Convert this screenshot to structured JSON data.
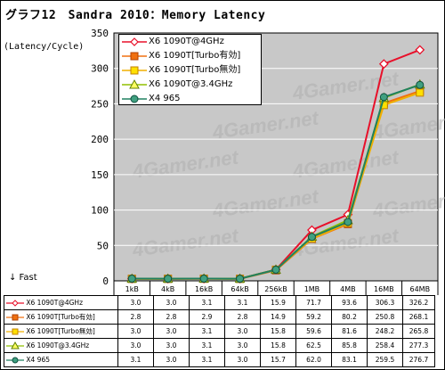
{
  "title": "グラフ12　Sandra 2010：Memory Latency",
  "ylabel": "(Latency/Cycle)",
  "fast_label": "↓ Fast",
  "chart_data": {
    "type": "line",
    "title": "グラフ12　Sandra 2010：Memory Latency",
    "ylabel": "(Latency/Cycle)",
    "xlabel": "",
    "categories": [
      "1kB",
      "4kB",
      "16kB",
      "64kB",
      "256kB",
      "1MB",
      "4MB",
      "16MB",
      "64MB"
    ],
    "ylim": [
      0,
      350
    ],
    "yticks": [
      0,
      50,
      100,
      150,
      200,
      250,
      300,
      350
    ],
    "grid": true,
    "legend_position": "top-left",
    "series": [
      {
        "name": "X6 1090T@4GHz",
        "values": [
          3.0,
          3.0,
          3.1,
          3.1,
          15.9,
          71.7,
          93.6,
          306.3,
          326.2
        ],
        "color": "#e8102a",
        "marker": "diamond",
        "marker_fill": "#ffffff",
        "marker_stroke": "#e8102a"
      },
      {
        "name": "X6 1090T[Turbo有効]",
        "values": [
          2.8,
          2.8,
          2.9,
          2.8,
          14.9,
          59.2,
          80.2,
          250.8,
          268.1
        ],
        "color": "#f07010",
        "marker": "square",
        "marker_fill": "#f07010",
        "marker_stroke": "#b04000"
      },
      {
        "name": "X6 1090T[Turbo無効]",
        "values": [
          3.0,
          3.0,
          3.1,
          3.0,
          15.8,
          59.6,
          81.6,
          248.2,
          265.8
        ],
        "color": "#f0b000",
        "marker": "square",
        "marker_fill": "#ffe000",
        "marker_stroke": "#c08000"
      },
      {
        "name": "X6 1090T@3.4GHz",
        "values": [
          3.0,
          3.0,
          3.1,
          3.0,
          15.8,
          62.5,
          85.8,
          258.4,
          277.3
        ],
        "color": "#90c000",
        "marker": "triangle",
        "marker_fill": "#ffff60",
        "marker_stroke": "#608000"
      },
      {
        "name": "X4 965",
        "values": [
          3.1,
          3.0,
          3.1,
          3.0,
          15.7,
          62.0,
          83.1,
          259.5,
          276.7
        ],
        "color": "#208060",
        "marker": "circle",
        "marker_fill": "#40a080",
        "marker_stroke": "#105040"
      }
    ],
    "table": {
      "rows": [
        [
          "3.0",
          "3.0",
          "3.1",
          "3.1",
          "15.9",
          "71.7",
          "93.6",
          "306.3",
          "326.2"
        ],
        [
          "2.8",
          "2.8",
          "2.9",
          "2.8",
          "14.9",
          "59.2",
          "80.2",
          "250.8",
          "268.1"
        ],
        [
          "3.0",
          "3.0",
          "3.1",
          "3.0",
          "15.8",
          "59.6",
          "81.6",
          "248.2",
          "265.8"
        ],
        [
          "3.0",
          "3.0",
          "3.1",
          "3.0",
          "15.8",
          "62.5",
          "85.8",
          "258.4",
          "277.3"
        ],
        [
          "3.1",
          "3.0",
          "3.1",
          "3.0",
          "15.7",
          "62.0",
          "83.1",
          "259.5",
          "276.7"
        ]
      ]
    }
  },
  "colors": {
    "plot_background": "#c8c8c8",
    "gridline": "#ffffff",
    "watermark": "#b0b0b0"
  },
  "watermark_text": "4Gamer.net"
}
